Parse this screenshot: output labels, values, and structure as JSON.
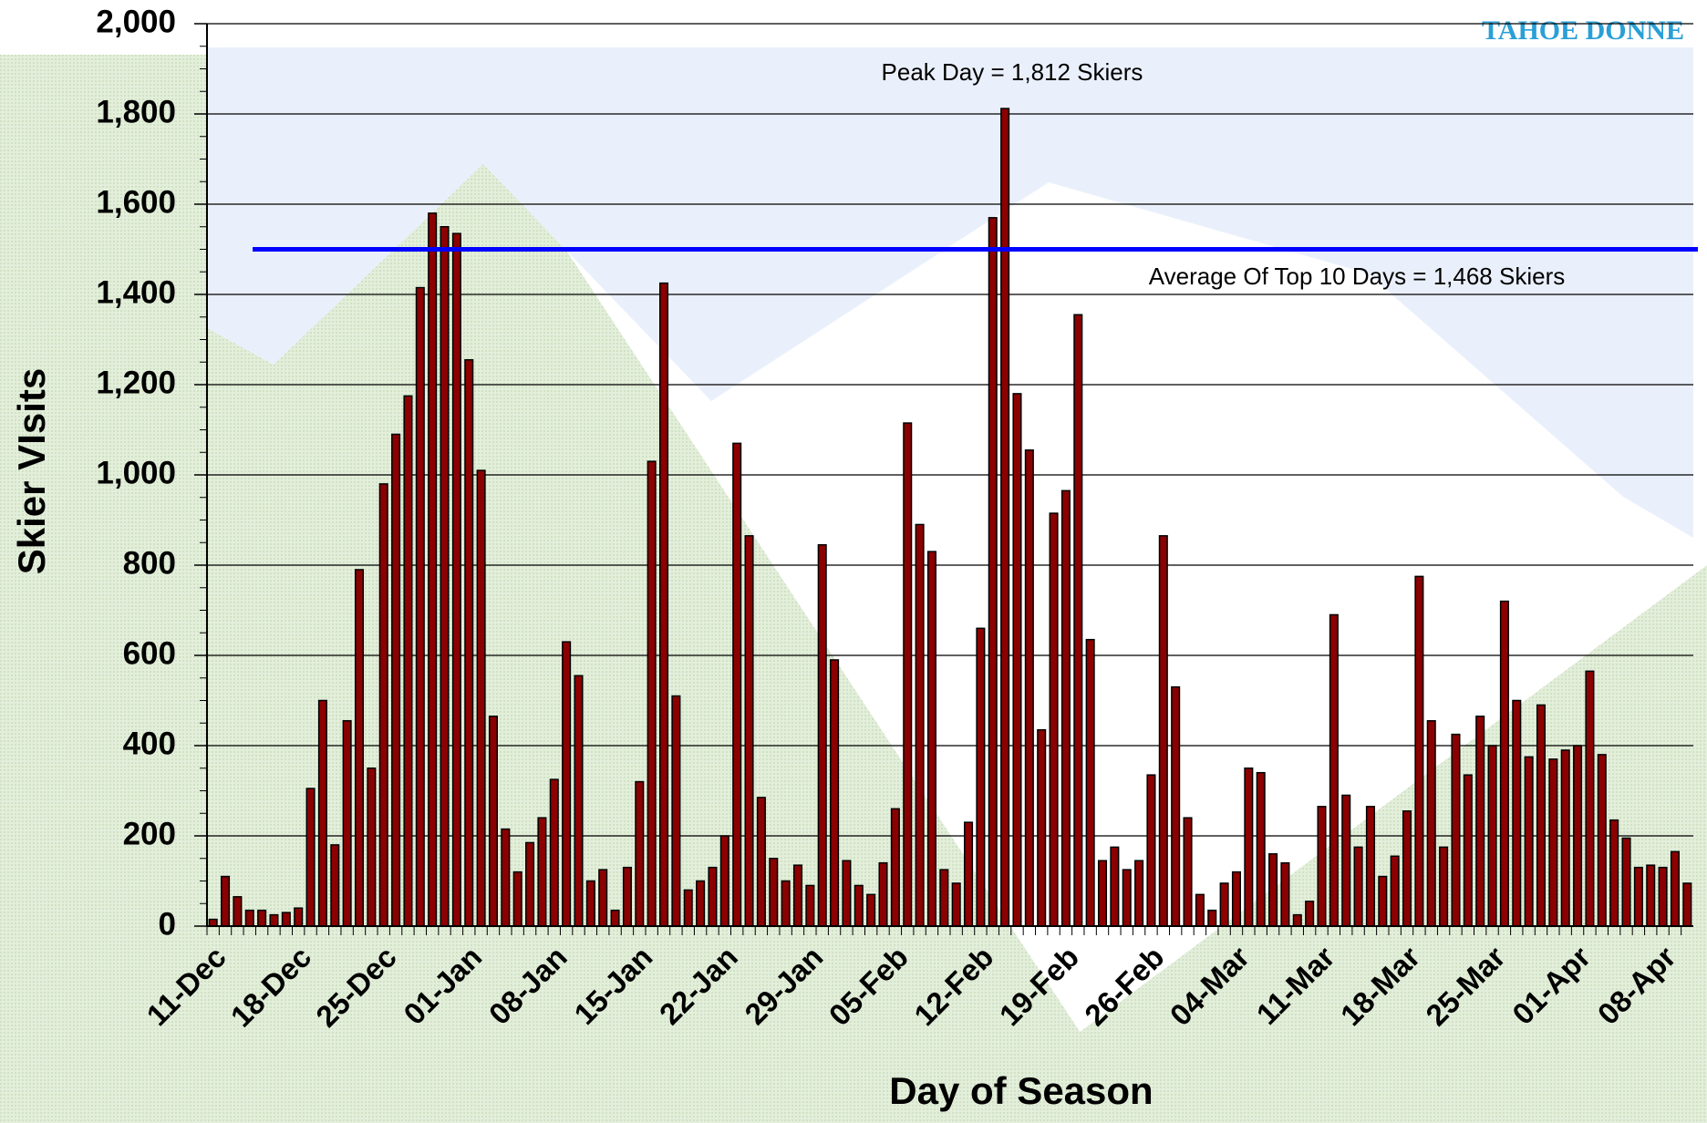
{
  "chart_data": {
    "type": "bar",
    "x_label": "Day of Season",
    "y_label": "Skier VIsits",
    "logo": "TAHOE DONNE",
    "categories": [
      "11-Dec",
      null,
      null,
      null,
      null,
      null,
      null,
      "18-Dec",
      null,
      null,
      null,
      null,
      null,
      null,
      "25-Dec",
      null,
      null,
      null,
      null,
      null,
      null,
      "01-Jan",
      null,
      null,
      null,
      null,
      null,
      null,
      "08-Jan",
      null,
      null,
      null,
      null,
      null,
      null,
      "15-Jan",
      null,
      null,
      null,
      null,
      null,
      null,
      "22-Jan",
      null,
      null,
      null,
      null,
      null,
      null,
      "29-Jan",
      null,
      null,
      null,
      null,
      null,
      null,
      "05-Feb",
      null,
      null,
      null,
      null,
      null,
      null,
      "12-Feb",
      null,
      null,
      null,
      null,
      null,
      null,
      "19-Feb",
      null,
      null,
      null,
      null,
      null,
      null,
      "26-Feb",
      null,
      null,
      null,
      null,
      null,
      null,
      "04-Mar",
      null,
      null,
      null,
      null,
      null,
      null,
      "11-Mar",
      null,
      null,
      null,
      null,
      null,
      null,
      "18-Mar",
      null,
      null,
      null,
      null,
      null,
      null,
      "25-Mar",
      null,
      null,
      null,
      null,
      null,
      null,
      "01-Apr",
      null,
      null,
      null,
      null,
      null,
      null,
      "08-Apr",
      null,
      null
    ],
    "values": [
      15,
      110,
      65,
      35,
      35,
      25,
      30,
      40,
      305,
      500,
      180,
      455,
      790,
      350,
      980,
      1090,
      1175,
      1415,
      1580,
      1550,
      1535,
      1255,
      1010,
      465,
      215,
      120,
      185,
      240,
      325,
      630,
      555,
      100,
      125,
      35,
      130,
      320,
      1030,
      1425,
      510,
      80,
      100,
      130,
      200,
      1070,
      865,
      285,
      150,
      100,
      135,
      90,
      845,
      590,
      145,
      90,
      70,
      140,
      260,
      1115,
      890,
      830,
      125,
      95,
      230,
      660,
      1570,
      1812,
      1180,
      1055,
      435,
      915,
      965,
      1355,
      635,
      145,
      175,
      125,
      145,
      335,
      865,
      530,
      240,
      70,
      35,
      95,
      120,
      350,
      340,
      160,
      140,
      25,
      55,
      265,
      690,
      290,
      175,
      265,
      110,
      155,
      255,
      775,
      455,
      175,
      425,
      335,
      465,
      400,
      720,
      500,
      375,
      490,
      370,
      390,
      400,
      565,
      380,
      235,
      195,
      130,
      135,
      130,
      165,
      95
    ],
    "color": "#8b0000",
    "ylim": [
      0,
      2000
    ],
    "yticks": [
      0,
      200,
      400,
      600,
      800,
      {
        "value": 1000,
        "label": "1,000"
      },
      {
        "value": 1200,
        "label": "1,200"
      },
      {
        "value": 1400,
        "label": "1,400"
      },
      {
        "value": 1600,
        "label": "1,600"
      },
      {
        "value": 1800,
        "label": "1,800"
      },
      {
        "value": 2000,
        "label": "2,000"
      }
    ],
    "grid": true,
    "reference_line": {
      "value": 1500,
      "color": "#0000ff"
    },
    "annotations": [
      "Peak Day = 1,812 Skiers",
      "Average Of Top 10 Days = 1,468 Skiers"
    ]
  }
}
